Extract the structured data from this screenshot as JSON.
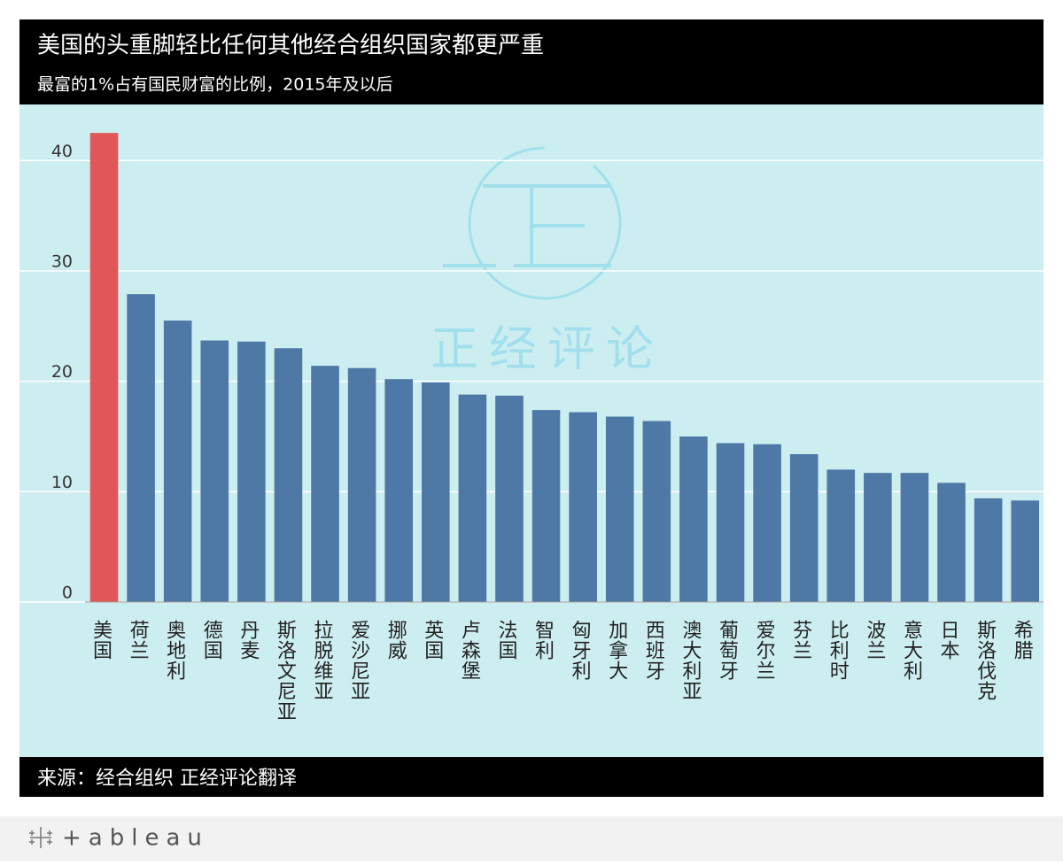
{
  "chart_data": {
    "type": "bar",
    "title": "美国的头重脚轻比任何其他经合组织国家都更严重",
    "subtitle": "最富的1%占有国民财富的比例，2015年及以后",
    "source": "来源：经合组织 正经评论翻译",
    "watermark": "正经评论",
    "brand": "+ableau",
    "categories": [
      "美国",
      "荷兰",
      "奥地利",
      "德国",
      "丹麦",
      "斯洛文尼亚",
      "拉脱维亚",
      "爱沙尼亚",
      "挪威",
      "英国",
      "卢森堡",
      "法国",
      "智利",
      "匈牙利",
      "加拿大",
      "西班牙",
      "澳大利亚",
      "葡萄牙",
      "爱尔兰",
      "芬兰",
      "比利时",
      "波兰",
      "意大利",
      "日本",
      "斯洛伐克",
      "希腊"
    ],
    "values": [
      42.5,
      27.9,
      25.5,
      23.7,
      23.6,
      23.0,
      21.4,
      21.2,
      20.2,
      19.9,
      18.8,
      18.7,
      17.4,
      17.2,
      16.8,
      16.4,
      15.0,
      14.4,
      14.3,
      13.4,
      12.0,
      11.7,
      11.7,
      10.8,
      9.4,
      9.2
    ],
    "colors": [
      "#e15759",
      "#4e79a7",
      "#4e79a7",
      "#4e79a7",
      "#4e79a7",
      "#4e79a7",
      "#4e79a7",
      "#4e79a7",
      "#4e79a7",
      "#4e79a7",
      "#4e79a7",
      "#4e79a7",
      "#4e79a7",
      "#4e79a7",
      "#4e79a7",
      "#4e79a7",
      "#4e79a7",
      "#4e79a7",
      "#4e79a7",
      "#4e79a7",
      "#4e79a7",
      "#4e79a7",
      "#4e79a7",
      "#4e79a7",
      "#4e79a7",
      "#4e79a7"
    ],
    "ylim": [
      0,
      45
    ],
    "yticks": [
      0,
      10,
      20,
      30,
      40
    ],
    "grid": true
  }
}
